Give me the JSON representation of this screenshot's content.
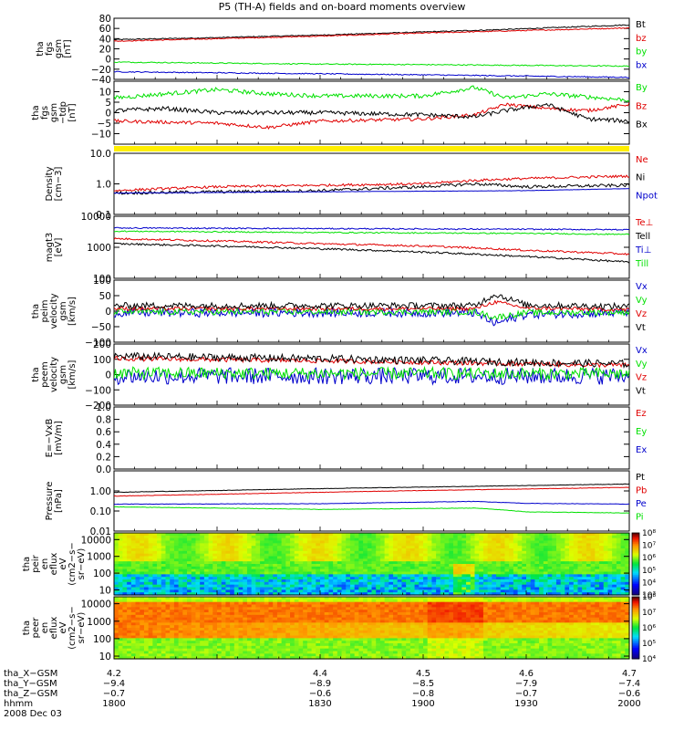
{
  "title": "P5 (TH-A) fields and on-board moments overview",
  "date_label": "2008 Dec 03",
  "colors": {
    "black": "#000000",
    "red": "#e00000",
    "green": "#00e000",
    "blue": "#0000cc",
    "yellow": "#ffee00"
  },
  "chart_data": [
    {
      "type": "line",
      "id": "fgs_gsm",
      "ylabel_lines": [
        "tha",
        "fgs",
        "gsm",
        "[nT]"
      ],
      "ylim": [
        -40,
        80
      ],
      "ticks": [
        {
          "v": 80,
          "label": "80"
        },
        {
          "v": 60,
          "label": "60"
        },
        {
          "v": 40,
          "label": "40"
        },
        {
          "v": 20,
          "label": "20"
        },
        {
          "v": 0,
          "label": "0"
        },
        {
          "v": -20,
          "label": "−20"
        },
        {
          "v": -40,
          "label": "−40"
        }
      ],
      "series": [
        {
          "name": "Bt",
          "color": "black",
          "x": [
            4.2,
            4.3,
            4.4,
            4.5,
            4.58,
            4.7
          ],
          "values": [
            38,
            42,
            47,
            53,
            58,
            67
          ],
          "noise": 1
        },
        {
          "name": "bz",
          "color": "red",
          "x": [
            4.2,
            4.3,
            4.4,
            4.5,
            4.58,
            4.7
          ],
          "values": [
            35,
            40,
            45,
            51,
            55,
            61
          ],
          "noise": 1
        },
        {
          "name": "by",
          "color": "green",
          "x": [
            4.2,
            4.3,
            4.4,
            4.5,
            4.7
          ],
          "values": [
            -6,
            -8,
            -10,
            -11,
            -14
          ],
          "noise": 1
        },
        {
          "name": "bx",
          "color": "blue",
          "x": [
            4.2,
            4.3,
            4.4,
            4.5,
            4.7
          ],
          "values": [
            -25,
            -27,
            -29,
            -31,
            -36
          ],
          "noise": 1
        }
      ]
    },
    {
      "type": "line",
      "id": "fgs_gsm_tdp",
      "ylabel_lines": [
        "tha",
        "fgs",
        "gsm",
        "−tdp",
        "[nT]"
      ],
      "ylim": [
        -15,
        15
      ],
      "ticks": [
        {
          "v": 10,
          "label": "10"
        },
        {
          "v": 5,
          "label": "5"
        },
        {
          "v": 0,
          "label": "0"
        },
        {
          "v": -5,
          "label": "−5"
        },
        {
          "v": -10,
          "label": "−10"
        }
      ],
      "series": [
        {
          "name": "By",
          "color": "green",
          "x": [
            4.2,
            4.25,
            4.3,
            4.35,
            4.4,
            4.5,
            4.55,
            4.58,
            4.62,
            4.7
          ],
          "values": [
            7,
            9,
            11,
            9,
            8,
            8,
            12,
            7,
            9,
            6
          ],
          "noise": 1
        },
        {
          "name": "Bz",
          "color": "red",
          "x": [
            4.2,
            4.3,
            4.35,
            4.4,
            4.5,
            4.55,
            4.58,
            4.62,
            4.66,
            4.7
          ],
          "values": [
            -4,
            -5,
            -7,
            -4,
            -3,
            -1,
            4,
            2,
            1,
            4
          ],
          "noise": 0.8
        },
        {
          "name": "Bx",
          "color": "black",
          "x": [
            4.2,
            4.25,
            4.3,
            4.4,
            4.5,
            4.55,
            4.58,
            4.62,
            4.66,
            4.7
          ],
          "values": [
            1,
            2,
            0,
            0,
            -1,
            -2,
            1,
            4,
            -3,
            -4
          ],
          "noise": 1
        }
      ]
    },
    {
      "type": "line",
      "id": "density",
      "scale": "log",
      "ylabel_lines": [
        "Density",
        "[cm−3]"
      ],
      "ylim": [
        0.1,
        10
      ],
      "ticks": [
        {
          "v": 10,
          "label": "10.0"
        },
        {
          "v": 1,
          "label": "1.0"
        },
        {
          "v": 0.1,
          "label": "0.1"
        }
      ],
      "series": [
        {
          "name": "Ne",
          "color": "red",
          "x": [
            4.2,
            4.3,
            4.4,
            4.5,
            4.55,
            4.6,
            4.7
          ],
          "values": [
            0.6,
            0.8,
            0.9,
            1.0,
            1.3,
            1.5,
            1.8
          ],
          "noise": 0.04
        },
        {
          "name": "Ni",
          "color": "black",
          "x": [
            4.2,
            4.3,
            4.4,
            4.5,
            4.55,
            4.6,
            4.7
          ],
          "values": [
            0.5,
            0.55,
            0.6,
            0.8,
            1.0,
            0.8,
            0.9
          ],
          "noise": 0.05
        },
        {
          "name": "Npot",
          "color": "blue",
          "x": [
            4.2,
            4.4,
            4.6,
            4.7
          ],
          "values": [
            0.5,
            0.55,
            0.6,
            0.7
          ],
          "noise": 0.005
        }
      ]
    },
    {
      "type": "line",
      "id": "temperature",
      "scale": "log",
      "ylabel_lines": [
        "magt3",
        "[eV]"
      ],
      "ylim": [
        100,
        10000
      ],
      "ticks": [
        {
          "v": 10000,
          "label": "10000"
        },
        {
          "v": 1000,
          "label": "1000"
        },
        {
          "v": 100,
          "label": "100"
        }
      ],
      "series": [
        {
          "name": "Te⊥",
          "color": "red",
          "x": [
            4.2,
            4.3,
            4.4,
            4.5,
            4.6,
            4.7
          ],
          "values": [
            1900,
            1600,
            1300,
            1100,
            800,
            600
          ],
          "noise": 0.03
        },
        {
          "name": "Tell",
          "color": "black",
          "x": [
            4.2,
            4.3,
            4.4,
            4.5,
            4.6,
            4.7
          ],
          "values": [
            1300,
            1100,
            900,
            700,
            500,
            330
          ],
          "noise": 0.03
        },
        {
          "name": "Ti⊥",
          "color": "blue",
          "x": [
            4.2,
            4.4,
            4.6,
            4.7
          ],
          "values": [
            4200,
            4000,
            3800,
            3700
          ],
          "noise": 0.02
        },
        {
          "name": "Till",
          "color": "green",
          "x": [
            4.2,
            4.4,
            4.6,
            4.7
          ],
          "values": [
            3300,
            3000,
            2800,
            2600
          ],
          "noise": 0.02
        }
      ]
    },
    {
      "type": "line",
      "id": "peim_velocity",
      "ylabel_lines": [
        "tha",
        "peim",
        "velocity",
        "gsm",
        "[km/s]"
      ],
      "ylim": [
        -100,
        100
      ],
      "ticks": [
        {
          "v": 100,
          "label": "100"
        },
        {
          "v": 50,
          "label": "50"
        },
        {
          "v": 0,
          "label": "0"
        },
        {
          "v": -50,
          "label": "−50"
        },
        {
          "v": -100,
          "label": "−100"
        }
      ],
      "series": [
        {
          "name": "Vx",
          "color": "blue",
          "x": [
            4.2,
            4.55,
            4.57,
            4.6,
            4.7
          ],
          "values": [
            -5,
            -5,
            -40,
            -10,
            -5
          ],
          "noise": 14
        },
        {
          "name": "Vy",
          "color": "green",
          "x": [
            4.2,
            4.55,
            4.57,
            4.6,
            4.7
          ],
          "values": [
            -2,
            -2,
            -20,
            -5,
            -3
          ],
          "noise": 10
        },
        {
          "name": "Vz",
          "color": "red",
          "x": [
            4.2,
            4.55,
            4.57,
            4.6,
            4.7
          ],
          "values": [
            8,
            8,
            30,
            10,
            5
          ],
          "noise": 6
        },
        {
          "name": "Vt",
          "color": "black",
          "x": [
            4.2,
            4.55,
            4.57,
            4.6,
            4.7
          ],
          "values": [
            18,
            18,
            55,
            20,
            15
          ],
          "noise": 10
        }
      ]
    },
    {
      "type": "line",
      "id": "peem_velocity",
      "ylabel_lines": [
        "tha",
        "peem",
        "velocity",
        "gsm",
        "[km/s]"
      ],
      "ylim": [
        -200,
        200
      ],
      "ticks": [
        {
          "v": 200,
          "label": "200"
        },
        {
          "v": 100,
          "label": "100"
        },
        {
          "v": 0,
          "label": "0"
        },
        {
          "v": -100,
          "label": "−100"
        },
        {
          "v": -200,
          "label": "−200"
        }
      ],
      "series": [
        {
          "name": "Vx",
          "color": "blue",
          "x": [
            4.2,
            4.7
          ],
          "values": [
            -10,
            -10
          ],
          "noise": 55
        },
        {
          "name": "Vy",
          "color": "green",
          "x": [
            4.2,
            4.7
          ],
          "values": [
            10,
            5
          ],
          "noise": 40
        },
        {
          "name": "Vz",
          "color": "red",
          "x": [
            4.2,
            4.4,
            4.6,
            4.7
          ],
          "values": [
            105,
            90,
            70,
            60
          ],
          "noise": 15
        },
        {
          "name": "Vt",
          "color": "black",
          "x": [
            4.2,
            4.4,
            4.6,
            4.7
          ],
          "values": [
            120,
            105,
            80,
            70
          ],
          "noise": 25
        }
      ]
    },
    {
      "type": "line",
      "id": "efield",
      "ylabel_lines": [
        "E=−VxB",
        "[mV/m]"
      ],
      "ylim": [
        0,
        1
      ],
      "ticks": [
        {
          "v": 1.0,
          "label": "1.0"
        },
        {
          "v": 0.8,
          "label": "0.8"
        },
        {
          "v": 0.6,
          "label": "0.6"
        },
        {
          "v": 0.4,
          "label": "0.4"
        },
        {
          "v": 0.2,
          "label": "0.2"
        },
        {
          "v": 0.0,
          "label": "0.0"
        }
      ],
      "series": [
        {
          "name": "Ez",
          "color": "red",
          "x": [],
          "values": []
        },
        {
          "name": "Ey",
          "color": "green",
          "x": [],
          "values": []
        },
        {
          "name": "Ex",
          "color": "blue",
          "x": [],
          "values": []
        }
      ]
    },
    {
      "type": "line",
      "id": "pressure",
      "scale": "log",
      "ylabel_lines": [
        "Pressure",
        "[nPa]"
      ],
      "ylim": [
        0.01,
        10
      ],
      "ticks": [
        {
          "v": 1,
          "label": "1.00"
        },
        {
          "v": 0.1,
          "label": "0.10"
        },
        {
          "v": 0.01,
          "label": "0.01"
        }
      ],
      "series": [
        {
          "name": "Pt",
          "color": "black",
          "x": [
            4.2,
            4.3,
            4.4,
            4.5,
            4.6,
            4.7
          ],
          "values": [
            0.85,
            1.05,
            1.3,
            1.55,
            1.85,
            2.2
          ],
          "noise": 0.01
        },
        {
          "name": "Pb",
          "color": "red",
          "x": [
            4.2,
            4.3,
            4.4,
            4.5,
            4.6,
            4.7
          ],
          "values": [
            0.55,
            0.68,
            0.85,
            1.05,
            1.25,
            1.5
          ],
          "noise": 0.01
        },
        {
          "name": "Pe",
          "color": "blue",
          "x": [
            4.2,
            4.4,
            4.55,
            4.6,
            4.7
          ],
          "values": [
            0.22,
            0.23,
            0.3,
            0.24,
            0.22
          ],
          "noise": 0.01
        },
        {
          "name": "Pi",
          "color": "green",
          "x": [
            4.2,
            4.4,
            4.55,
            4.6,
            4.7
          ],
          "values": [
            0.16,
            0.12,
            0.14,
            0.09,
            0.08
          ],
          "noise": 0.01
        }
      ]
    },
    {
      "type": "heatmap",
      "id": "peir_eflux",
      "ylabel_lines": [
        "tha",
        "peir",
        "en",
        "eflux",
        "eV",
        "(cm2−s−",
        "sr−eV)"
      ],
      "scale": "log",
      "ylim": [
        5,
        25000
      ],
      "ticks": [
        {
          "v": 10000,
          "label": "10000"
        },
        {
          "v": 1000,
          "label": "1000"
        },
        {
          "v": 100,
          "label": "100"
        },
        {
          "v": 10,
          "label": "10"
        }
      ],
      "colorbar": {
        "min_exp": 3,
        "max_exp": 8,
        "labels": [
          "10³",
          "10⁴",
          "10⁵",
          "10⁶",
          "10⁷",
          "10⁸"
        ]
      }
    },
    {
      "type": "heatmap",
      "id": "peer_eflux",
      "ylabel_lines": [
        "tha",
        "peer",
        "en",
        "eflux",
        "eV",
        "(cm2−s−",
        "sr−eV)"
      ],
      "scale": "log",
      "ylim": [
        7,
        25000
      ],
      "ticks": [
        {
          "v": 10000,
          "label": "10000"
        },
        {
          "v": 1000,
          "label": "1000"
        },
        {
          "v": 100,
          "label": "100"
        },
        {
          "v": 10,
          "label": "10"
        }
      ],
      "colorbar": {
        "min_exp": 4,
        "max_exp": 8,
        "labels": [
          "10⁴",
          "10⁵",
          "10⁶",
          "10⁷",
          "10⁸"
        ]
      }
    }
  ],
  "x_axis": {
    "row_labels": [
      "tha_X−GSM",
      "tha_Y−GSM",
      "tha_Z−GSM",
      "hhmm"
    ],
    "columns": [
      {
        "x": 4.2,
        "values": [
          "4.2",
          "−9.4",
          "−0.7",
          "1800"
        ]
      },
      {
        "x": 4.4,
        "values": [
          "4.4",
          "−8.9",
          "−0.6",
          "1830"
        ]
      },
      {
        "x": 4.5,
        "values": [
          "4.5",
          "−8.5",
          "−0.8",
          "1900"
        ]
      },
      {
        "x": 4.6,
        "values": [
          "4.6",
          "−7.9",
          "−0.7",
          "1930"
        ]
      },
      {
        "x": 4.7,
        "values": [
          "4.7",
          "−7.4",
          "−0.6",
          "2000"
        ]
      }
    ]
  }
}
